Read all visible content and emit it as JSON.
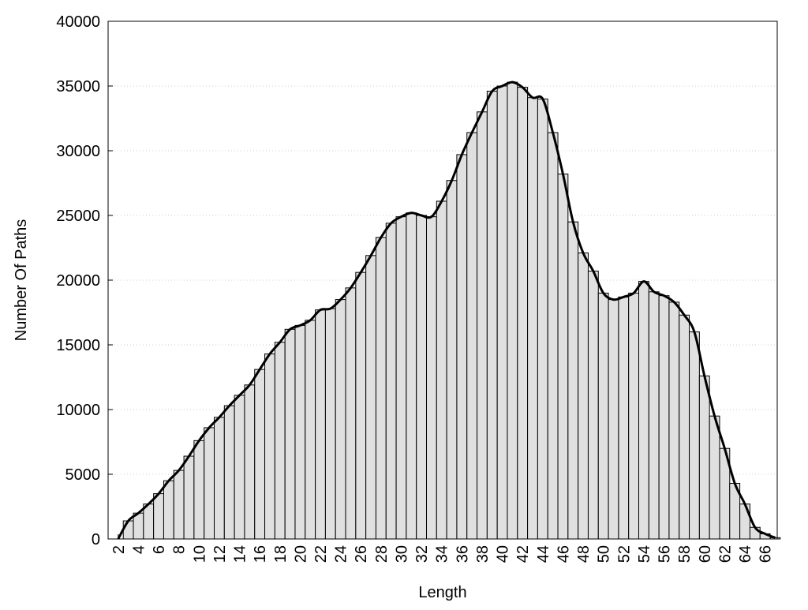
{
  "chart_data": {
    "type": "histogram",
    "xlabel": "Length",
    "ylabel": "Number Of Paths",
    "x": [
      2,
      3,
      4,
      5,
      6,
      7,
      8,
      9,
      10,
      11,
      12,
      13,
      14,
      15,
      16,
      17,
      18,
      19,
      20,
      21,
      22,
      23,
      24,
      25,
      26,
      27,
      28,
      29,
      30,
      31,
      32,
      33,
      34,
      35,
      36,
      37,
      38,
      39,
      40,
      41,
      42,
      43,
      44,
      45,
      46,
      47,
      48,
      49,
      50,
      51,
      52,
      53,
      54,
      55,
      56,
      57,
      58,
      59,
      60,
      61,
      62,
      63,
      64,
      65,
      66,
      67
    ],
    "values": [
      0,
      1400,
      2000,
      2700,
      3500,
      4500,
      5300,
      6400,
      7600,
      8600,
      9400,
      10300,
      11100,
      11900,
      13100,
      14300,
      15200,
      16200,
      16500,
      16900,
      17700,
      17800,
      18500,
      19400,
      20600,
      21900,
      23300,
      24400,
      24900,
      25200,
      25000,
      24900,
      26100,
      27700,
      29700,
      31400,
      33000,
      34600,
      35000,
      35300,
      34900,
      34100,
      34000,
      31400,
      28200,
      24500,
      22100,
      20700,
      19000,
      18500,
      18700,
      19000,
      19900,
      19100,
      18800,
      18300,
      17300,
      16000,
      12600,
      9500,
      7000,
      4300,
      2700,
      900,
      400,
      100
    ],
    "bar_color": "#e0e0e0",
    "line_color": "#000000",
    "xlim": [
      1,
      67.2
    ],
    "ylim": [
      0,
      40000
    ],
    "xticks": [
      2,
      4,
      6,
      8,
      10,
      12,
      14,
      16,
      18,
      20,
      22,
      24,
      26,
      28,
      30,
      32,
      34,
      36,
      38,
      40,
      42,
      44,
      46,
      48,
      50,
      52,
      54,
      56,
      58,
      60,
      62,
      64,
      66
    ],
    "yticks": [
      0,
      5000,
      10000,
      15000,
      20000,
      25000,
      30000,
      35000,
      40000
    ],
    "grid": true
  }
}
